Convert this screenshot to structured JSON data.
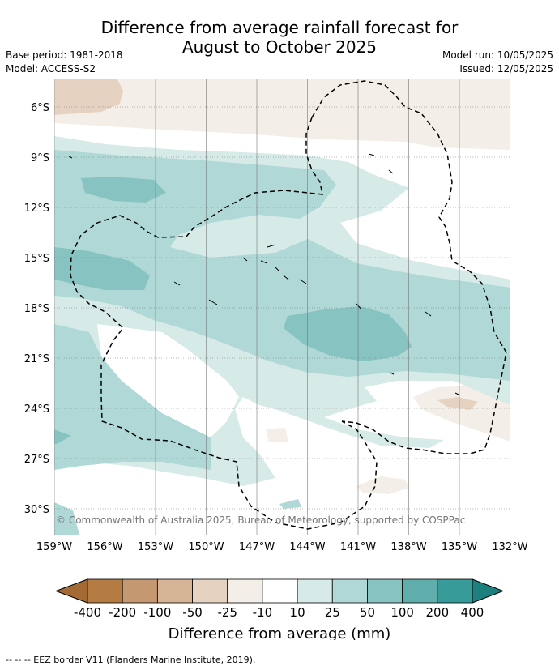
{
  "title_line1": "Difference from average rainfall forecast for",
  "title_line2": "August to October 2025",
  "base_period": "Base period: 1981-2018",
  "model": "Model: ACCESS-S2",
  "model_run": "Model run: 10/05/2025",
  "issued": "Issued: 12/05/2025",
  "copyright": "© Commonwealth of Australia 2025, Bureau of Meteorology, supported by COSPPac",
  "lat_labels": [
    "6°S",
    "9°S",
    "12°S",
    "15°S",
    "18°S",
    "21°S",
    "24°S",
    "27°S",
    "30°S"
  ],
  "lon_labels": [
    "159°W",
    "156°W",
    "153°W",
    "150°W",
    "147°W",
    "144°W",
    "141°W",
    "138°W",
    "135°W",
    "132°W"
  ],
  "colorbar": {
    "title": "Difference from average (mm)",
    "tick_labels": [
      "-400",
      "-200",
      "-100",
      "-50",
      "-25",
      "-10",
      "10",
      "25",
      "50",
      "100",
      "200",
      "400"
    ],
    "colors": [
      "#a36a33",
      "#b47b43",
      "#c49870",
      "#d6b596",
      "#e5d2c1",
      "#f3eee8",
      "#ffffff",
      "#d6eae8",
      "#afd8d6",
      "#86c3c1",
      "#5faeac",
      "#379b99",
      "#1e807e"
    ]
  },
  "legend_note": "--  --  -- EEZ border V11 (Flanders Marine Institute, 2019)."
}
